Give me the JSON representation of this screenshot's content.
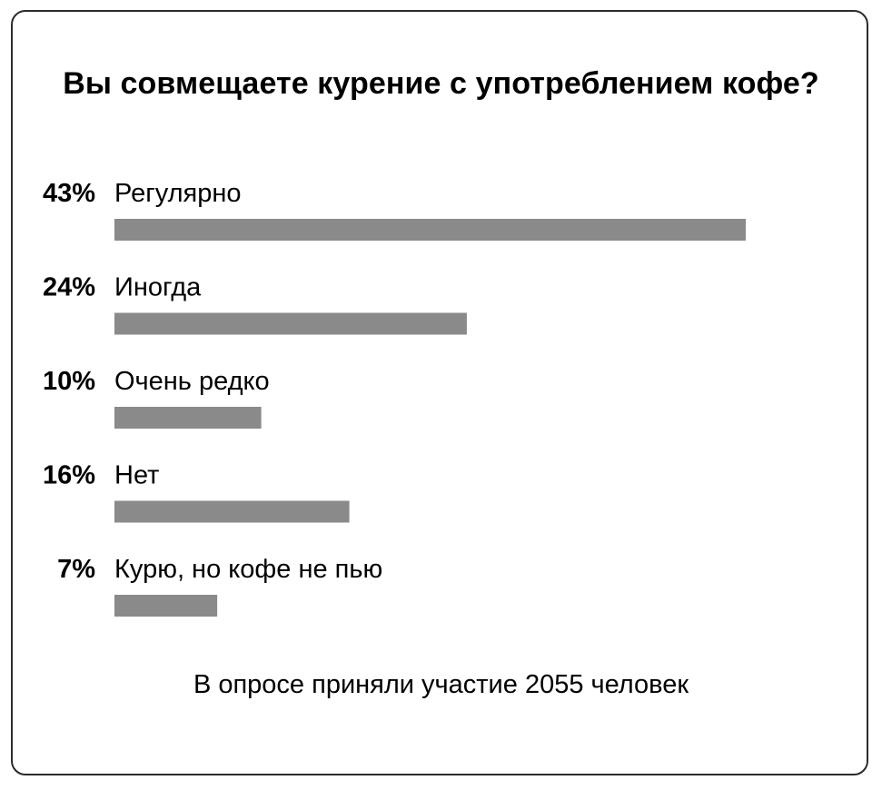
{
  "poll": {
    "title": "Вы совмещаете курение с употреблением кофе?",
    "footer": "В опросе приняли участие 2055 человек",
    "bar_color": "#8a8a8a",
    "border_color": "#2b2b2b"
  },
  "chart_data": {
    "type": "bar",
    "orientation": "horizontal",
    "title": "Вы совмещаете курение с употреблением кофе?",
    "categories": [
      "Регулярно",
      "Иногда",
      "Очень редко",
      "Нет",
      "Курю, но кофе не пью"
    ],
    "values": [
      43,
      24,
      10,
      16,
      7
    ],
    "value_labels": [
      "43%",
      "24%",
      "10%",
      "16%",
      "7%"
    ],
    "unit": "%",
    "xlim": [
      0,
      43
    ],
    "grid": false,
    "legend": "none"
  }
}
